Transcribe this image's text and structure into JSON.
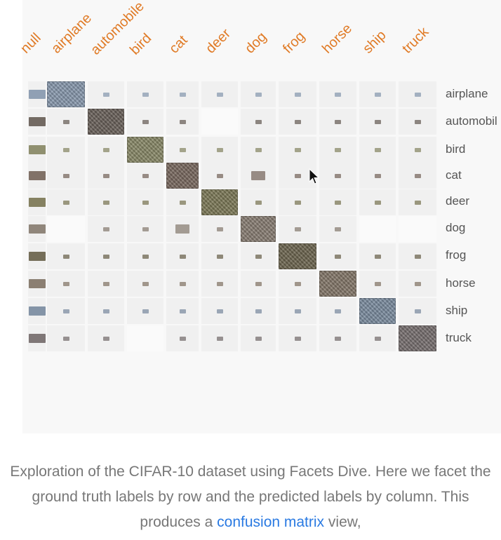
{
  "column_labels": [
    "null",
    "airplane",
    "automobile",
    "bird",
    "cat",
    "deer",
    "dog",
    "frog",
    "horse",
    "ship",
    "truck"
  ],
  "row_labels": [
    "airplane",
    "automobil",
    "bird",
    "cat",
    "deer",
    "dog",
    "frog",
    "horse",
    "ship",
    "truck"
  ],
  "counts_matrix": [
    [
      1,
      10,
      1,
      1,
      1,
      1,
      1,
      1,
      1,
      1,
      1
    ],
    [
      1,
      1,
      10,
      1,
      1,
      0,
      1,
      1,
      1,
      1,
      1
    ],
    [
      1,
      1,
      1,
      10,
      1,
      1,
      1,
      1,
      1,
      1,
      1
    ],
    [
      1,
      1,
      1,
      1,
      10,
      1,
      2,
      1,
      1,
      1,
      1
    ],
    [
      1,
      1,
      1,
      1,
      1,
      10,
      1,
      1,
      1,
      1,
      1
    ],
    [
      1,
      0,
      1,
      1,
      2,
      1,
      10,
      1,
      1,
      0,
      0
    ],
    [
      1,
      1,
      1,
      1,
      1,
      1,
      1,
      10,
      1,
      1,
      1
    ],
    [
      1,
      1,
      1,
      1,
      1,
      1,
      1,
      1,
      10,
      1,
      1
    ],
    [
      1,
      1,
      1,
      1,
      1,
      1,
      1,
      1,
      1,
      10,
      1
    ],
    [
      1,
      1,
      1,
      0,
      1,
      1,
      1,
      1,
      1,
      1,
      10
    ]
  ],
  "row_colors": {
    "airplane": "#8a9bb0",
    "automobil": "#6b625b",
    "bird": "#8a8a68",
    "cat": "#7a6a60",
    "deer": "#7e7a58",
    "dog": "#8a7f74",
    "frog": "#6e6650",
    "horse": "#85786a",
    "ship": "#7d8ea2",
    "truck": "#787070"
  },
  "colors": {
    "column_header": "#e07b27",
    "row_label": "#555555",
    "caption_text": "#777777",
    "link": "#2a7ae2",
    "panel_background": "#f8f8f8"
  },
  "caption": {
    "text_before_link": "Exploration of the CIFAR-10 dataset using Facets Dive. Here we facet the ground truth labels by row and the predicted labels by column. This produces a ",
    "link_text": "confusion matrix",
    "text_after_link": " view,"
  },
  "cursor_icon": "arrow-pointer-icon"
}
